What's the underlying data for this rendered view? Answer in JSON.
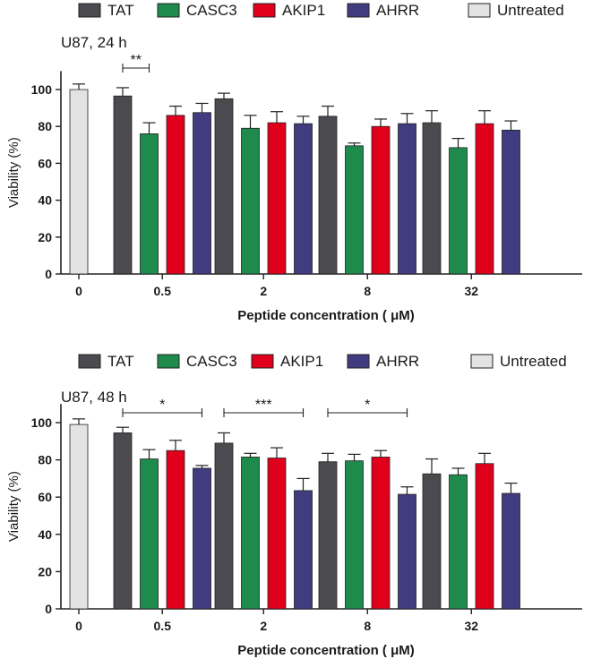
{
  "chart_data": [
    {
      "type": "bar",
      "title": "U87, 24 h",
      "xlabel": "Peptide concentration ( μM)",
      "ylabel": "Viability (%)",
      "ylim": [
        0,
        110
      ],
      "yticks": [
        "0",
        "20",
        "40",
        "60",
        "80",
        "100"
      ],
      "categories": [
        "0",
        "0.5",
        "2",
        "8",
        "32"
      ],
      "legend": [
        "TAT",
        "CASC3",
        "AKIP1",
        "AHRR",
        "Untreated"
      ],
      "colors": {
        "TAT": "#4a4a4f",
        "CASC3": "#1e8a4c",
        "AKIP1": "#e0001b",
        "AHRR": "#413c80",
        "Untreated": "#e3e3e3"
      },
      "untreated": {
        "category": "0",
        "value": 100,
        "error": 3
      },
      "series": [
        {
          "name": "TAT",
          "values": [
            null,
            96.5,
            95,
            85.5,
            82
          ],
          "errors": [
            null,
            4.5,
            3,
            5.5,
            6.5
          ]
        },
        {
          "name": "CASC3",
          "values": [
            null,
            76,
            79,
            69.5,
            68.5
          ],
          "errors": [
            null,
            6,
            7,
            1.5,
            5
          ]
        },
        {
          "name": "AKIP1",
          "values": [
            null,
            86,
            82,
            80,
            81.5
          ],
          "errors": [
            null,
            5,
            6,
            4,
            7
          ]
        },
        {
          "name": "AHRR",
          "values": [
            null,
            87.5,
            81.5,
            81.5,
            78
          ],
          "errors": [
            null,
            5,
            4,
            5.5,
            5
          ]
        }
      ],
      "significance": [
        {
          "label": "**",
          "category": "0.5",
          "from": "TAT",
          "to": "CASC3"
        }
      ]
    },
    {
      "type": "bar",
      "title": "U87, 48 h",
      "xlabel": "Peptide concentration ( μM)",
      "ylabel": "Viability (%)",
      "ylim": [
        0,
        110
      ],
      "yticks": [
        "0",
        "20",
        "40",
        "60",
        "80",
        "100"
      ],
      "categories": [
        "0",
        "0.5",
        "2",
        "8",
        "32"
      ],
      "legend": [
        "TAT",
        "CASC3",
        "AKIP1",
        "AHRR",
        "Untreated"
      ],
      "colors": {
        "TAT": "#4a4a4f",
        "CASC3": "#1e8a4c",
        "AKIP1": "#e0001b",
        "AHRR": "#413c80",
        "Untreated": "#e3e3e3"
      },
      "untreated": {
        "category": "0",
        "value": 99,
        "error": 3
      },
      "series": [
        {
          "name": "TAT",
          "values": [
            null,
            94.5,
            89,
            79,
            72.5
          ],
          "errors": [
            null,
            3,
            5.5,
            4.5,
            8
          ]
        },
        {
          "name": "CASC3",
          "values": [
            null,
            80.5,
            81.5,
            79.5,
            72
          ],
          "errors": [
            null,
            5,
            2,
            3.5,
            3.5
          ]
        },
        {
          "name": "AKIP1",
          "values": [
            null,
            85,
            81,
            81.5,
            78
          ],
          "errors": [
            null,
            5.5,
            5.5,
            3.5,
            5.5
          ]
        },
        {
          "name": "AHRR",
          "values": [
            null,
            75.5,
            63.5,
            61.5,
            62
          ],
          "errors": [
            null,
            1.5,
            6.5,
            4,
            5.5
          ]
        }
      ],
      "significance": [
        {
          "label": "*",
          "category": "0.5",
          "from": "TAT",
          "to": "AHRR"
        },
        {
          "label": "***",
          "category": "2",
          "from": "TAT",
          "to": "AHRR"
        },
        {
          "label": "*",
          "category": "8",
          "from": "TAT",
          "to": "AHRR"
        }
      ]
    }
  ]
}
